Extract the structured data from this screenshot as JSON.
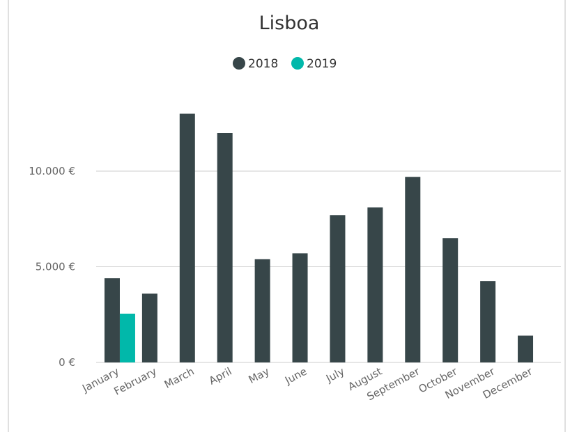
{
  "chart_data": {
    "type": "bar",
    "title": "Lisboa",
    "categories": [
      "January",
      "February",
      "March",
      "April",
      "May",
      "June",
      "July",
      "August",
      "September",
      "October",
      "November",
      "December"
    ],
    "series": [
      {
        "name": "2018",
        "color": "#374649",
        "values": [
          4400,
          3600,
          13000,
          12000,
          5400,
          5700,
          7700,
          8100,
          9700,
          6500,
          4250,
          1400
        ]
      },
      {
        "name": "2019",
        "color": "#01b8aa",
        "values": [
          2550,
          null,
          null,
          null,
          null,
          null,
          null,
          null,
          null,
          null,
          null,
          null
        ]
      }
    ],
    "ylim": [
      0,
      14000
    ],
    "yticks": [
      {
        "value": 0,
        "label": "0 €"
      },
      {
        "value": 5000,
        "label": "5.000 €"
      },
      {
        "value": 10000,
        "label": "10.000 €"
      }
    ],
    "grid": true,
    "legend": "top"
  }
}
